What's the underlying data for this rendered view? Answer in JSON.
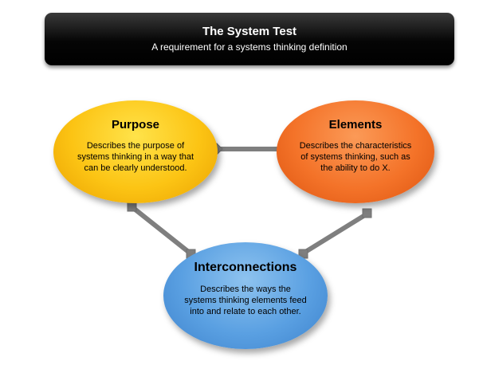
{
  "header": {
    "title": "The System Test",
    "subtitle": "A requirement for a systems thinking definition"
  },
  "nodes": {
    "purpose": {
      "heading": "Purpose",
      "body": "Describes the purpose of systems thinking in a way that can be clearly understood.",
      "color": "#fcc414"
    },
    "elements": {
      "heading": "Elements",
      "body": "Describes the characteristics of systems thinking, such as the ability to do X.",
      "color": "#f47329"
    },
    "interconnections": {
      "heading": "Interconnections",
      "body": "Describes the ways the systems thinking elements feed into  and relate to each other.",
      "color": "#5aa0e2"
    }
  },
  "connector_color": "#7f7f7f"
}
